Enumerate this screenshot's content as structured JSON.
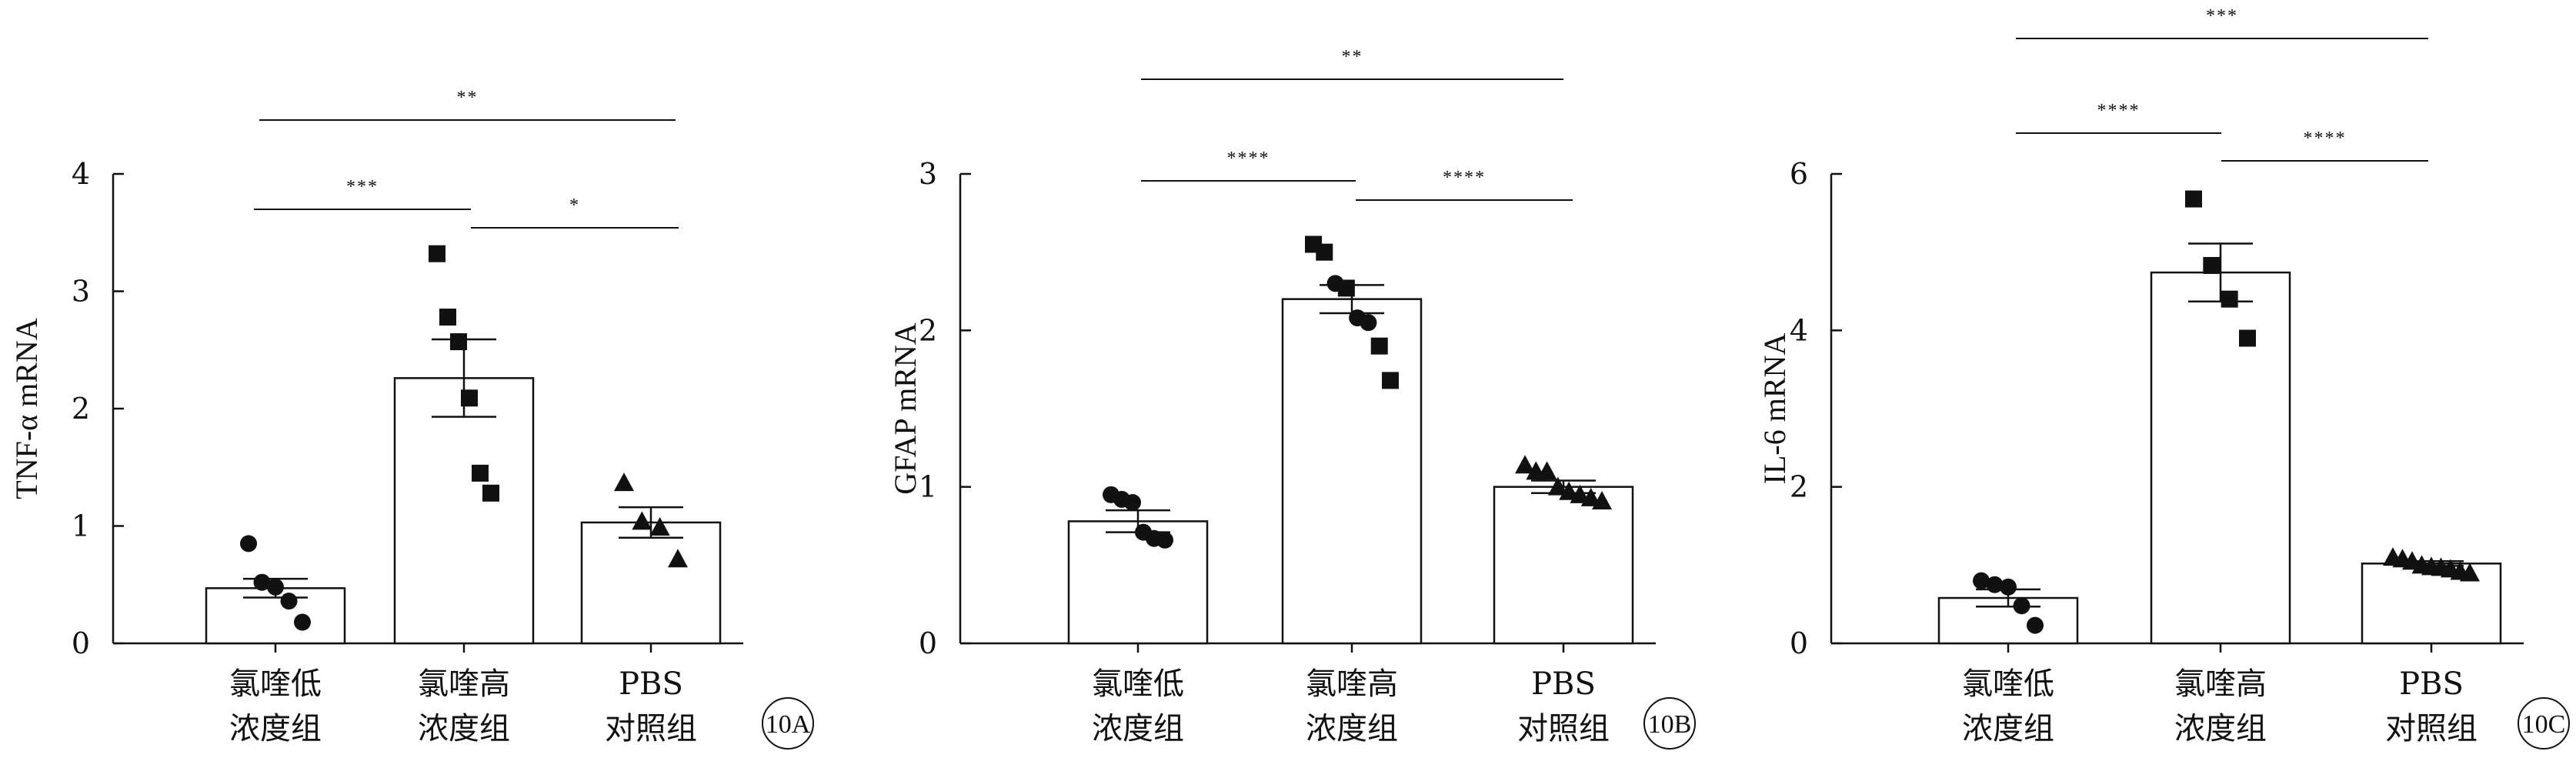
{
  "chart_data": [
    {
      "type": "bar",
      "panel": "10A",
      "ylabel": "TNF-α mRNA",
      "ylim": [
        0,
        4
      ],
      "yticks": [
        0,
        1,
        2,
        3,
        4
      ],
      "categories": [
        [
          "氯喹低",
          "浓度组"
        ],
        [
          "氯喹高",
          "浓度组"
        ],
        [
          "PBS",
          "对照组"
        ]
      ],
      "values": [
        0.47,
        2.26,
        1.03
      ],
      "errors": [
        0.08,
        0.33,
        0.13
      ],
      "markers": [
        "circle",
        "square",
        "triangle"
      ],
      "points": [
        [
          0.85,
          0.52,
          0.48,
          0.36,
          0.18
        ],
        [
          3.32,
          2.78,
          2.57,
          2.09,
          1.45,
          1.28
        ],
        [
          1.37,
          1.04,
          0.99,
          0.72
        ]
      ],
      "significance": [
        {
          "from": 0,
          "to": 1,
          "label": "***"
        },
        {
          "from": 1,
          "to": 2,
          "label": "*"
        },
        {
          "from": 0,
          "to": 2,
          "label": "**"
        }
      ]
    },
    {
      "type": "bar",
      "panel": "10B",
      "ylabel": "GFAP mRNA",
      "ylim": [
        0,
        3
      ],
      "yticks": [
        0,
        1,
        2,
        3
      ],
      "categories": [
        [
          "氯喹低",
          "浓度组"
        ],
        [
          "氯喹高",
          "浓度组"
        ],
        [
          "PBS",
          "对照组"
        ]
      ],
      "values": [
        0.78,
        2.2,
        1.0
      ],
      "errors": [
        0.07,
        0.09,
        0.04
      ],
      "markers": [
        "circle",
        "circle",
        "triangle"
      ],
      "marker_overrides": [
        null,
        [
          "square",
          "square",
          "circle",
          "square",
          "circle",
          "circle",
          "square",
          "square"
        ],
        null
      ],
      "points": [
        [
          0.95,
          0.92,
          0.9,
          0.71,
          0.67,
          0.66
        ],
        [
          2.55,
          2.5,
          2.3,
          2.27,
          2.08,
          2.05,
          1.9,
          1.68
        ],
        [
          1.14,
          1.1,
          1.1,
          1.0,
          0.97,
          0.95,
          0.93,
          0.91
        ]
      ],
      "significance": [
        {
          "from": 0,
          "to": 1,
          "label": "****"
        },
        {
          "from": 1,
          "to": 2,
          "label": "****"
        },
        {
          "from": 0,
          "to": 2,
          "label": "**"
        }
      ]
    },
    {
      "type": "bar",
      "panel": "10C",
      "ylabel": "IL-6 mRNA",
      "ylim": [
        0,
        6
      ],
      "yticks": [
        0,
        2,
        4,
        6
      ],
      "categories": [
        [
          "氯喹低",
          "浓度组"
        ],
        [
          "氯喹高",
          "浓度组"
        ],
        [
          "PBS",
          "对照组"
        ]
      ],
      "values": [
        0.58,
        4.74,
        1.02
      ],
      "errors": [
        0.11,
        0.37,
        0.03
      ],
      "markers": [
        "circle",
        "square",
        "triangle"
      ],
      "points": [
        [
          0.8,
          0.75,
          0.72,
          0.48,
          0.23
        ],
        [
          5.68,
          4.83,
          4.4,
          3.9
        ],
        [
          1.1,
          1.08,
          1.05,
          1.0,
          0.98,
          0.97,
          0.95,
          0.92,
          0.9
        ]
      ],
      "significance": [
        {
          "from": 0,
          "to": 1,
          "label": "****"
        },
        {
          "from": 1,
          "to": 2,
          "label": "****"
        },
        {
          "from": 0,
          "to": 2,
          "label": "***"
        }
      ]
    }
  ]
}
